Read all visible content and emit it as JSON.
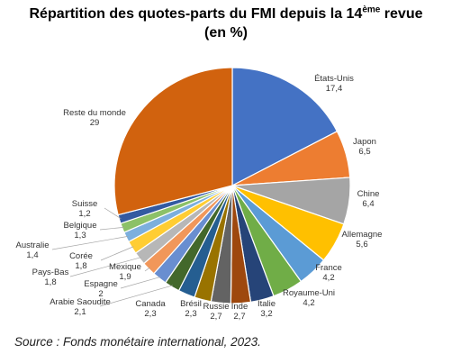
{
  "title": {
    "line1_prefix": "Répartition des quotes-parts du FMI depuis la 14",
    "line1_sup": "ème",
    "line1_suffix": " revue",
    "line2": "(en %)"
  },
  "source": "Source : Fonds monétaire international, 2023.",
  "chart_data": {
    "type": "pie",
    "title": "Répartition des quotes-parts du FMI depuis la 14ème revue (en %)",
    "start_angle_deg": 0,
    "direction": "clockwise",
    "slices": [
      {
        "name": "États-Unis",
        "value": 17.4,
        "label": "17,4",
        "color": "#4472C4"
      },
      {
        "name": "Japon",
        "value": 6.5,
        "label": "6,5",
        "color": "#ED7D31"
      },
      {
        "name": "Chine",
        "value": 6.4,
        "label": "6,4",
        "color": "#A5A5A5"
      },
      {
        "name": "Allemagne",
        "value": 5.6,
        "label": "5,6",
        "color": "#FFC000"
      },
      {
        "name": "France",
        "value": 4.2,
        "label": "4,2",
        "color": "#5B9BD5"
      },
      {
        "name": "Royaume-Uni",
        "value": 4.2,
        "label": "4,2",
        "color": "#70AD47"
      },
      {
        "name": "Italie",
        "value": 3.2,
        "label": "3,2",
        "color": "#264478"
      },
      {
        "name": "Inde",
        "value": 2.7,
        "label": "2,7",
        "color": "#9E480E"
      },
      {
        "name": "Russie",
        "value": 2.7,
        "label": "2,7",
        "color": "#636363"
      },
      {
        "name": "Brésil",
        "value": 2.3,
        "label": "2,3",
        "color": "#997300"
      },
      {
        "name": "Canada",
        "value": 2.3,
        "label": "2,3",
        "color": "#255E91"
      },
      {
        "name": "Arabie Saoudite",
        "value": 2.1,
        "label": "2,1",
        "color": "#43682B"
      },
      {
        "name": "Espagne",
        "value": 2.0,
        "label": "2",
        "color": "#698ED0"
      },
      {
        "name": "Mexique",
        "value": 1.9,
        "label": "1,9",
        "color": "#F1975A"
      },
      {
        "name": "Pays-Bas",
        "value": 1.8,
        "label": "1,8",
        "color": "#B7B7B7"
      },
      {
        "name": "Corée",
        "value": 1.8,
        "label": "1,8",
        "color": "#FFCD33"
      },
      {
        "name": "Australie",
        "value": 1.4,
        "label": "1,4",
        "color": "#7CAFDD"
      },
      {
        "name": "Belgique",
        "value": 1.3,
        "label": "1,3",
        "color": "#8CC168"
      },
      {
        "name": "Suisse",
        "value": 1.2,
        "label": "1,2",
        "color": "#335AA1"
      },
      {
        "name": "Reste du monde",
        "value": 29,
        "label": "29",
        "color": "#D1620E"
      }
    ]
  }
}
